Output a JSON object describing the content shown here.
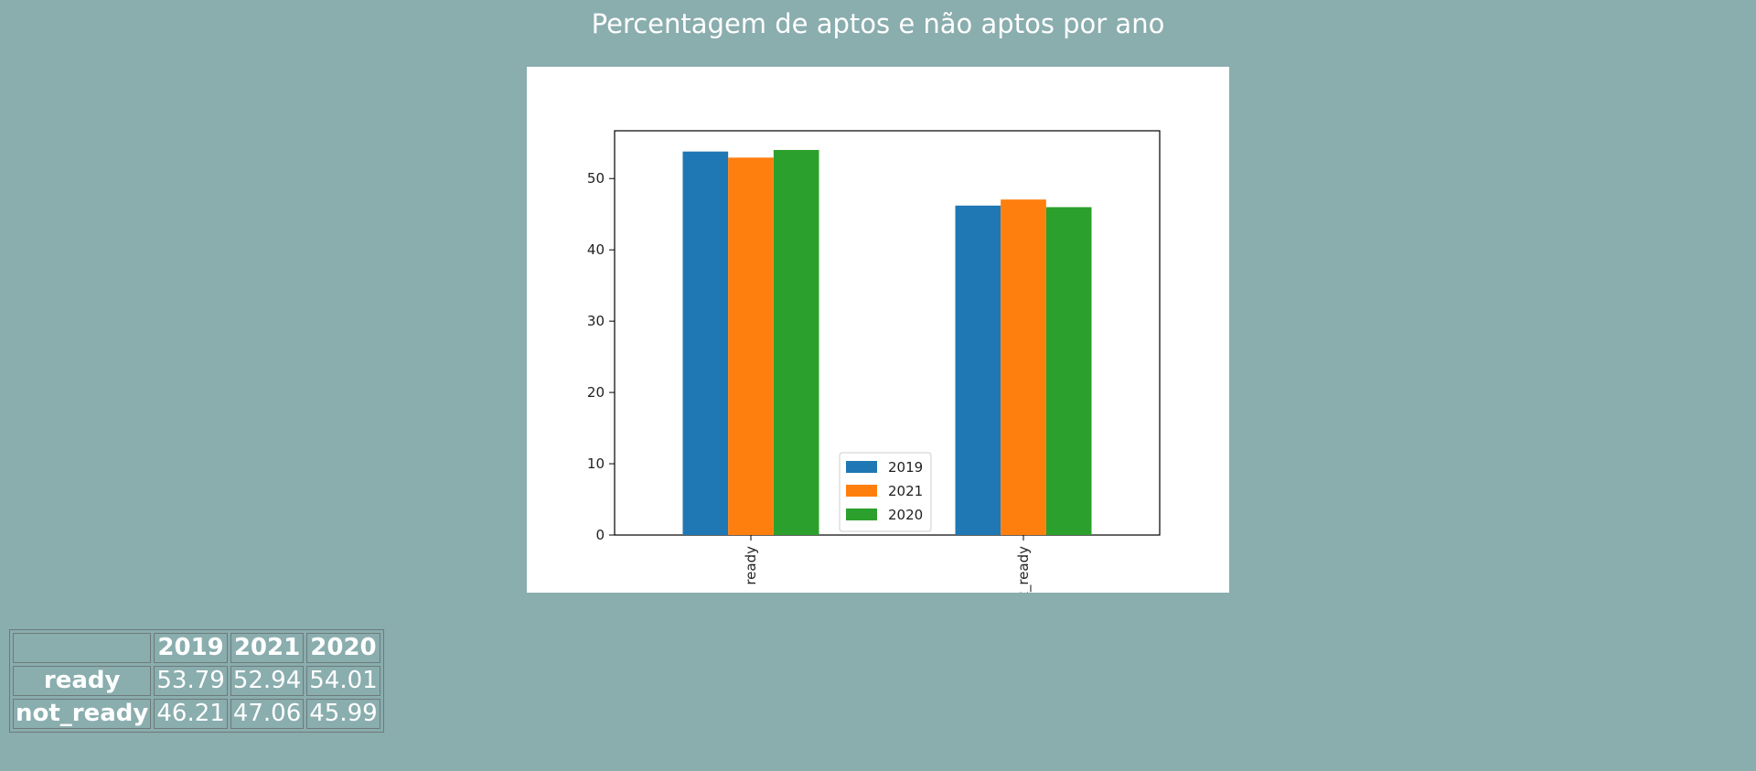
{
  "page_title": "Percentagem de aptos e não aptos por ano",
  "chart_data": {
    "type": "bar",
    "categories": [
      "ready",
      "not_ready"
    ],
    "series": [
      {
        "name": "2019",
        "values": [
          53.79,
          46.21
        ],
        "color": "#1f77b4"
      },
      {
        "name": "2021",
        "values": [
          52.94,
          47.06
        ],
        "color": "#ff7f0e"
      },
      {
        "name": "2020",
        "values": [
          54.01,
          45.99
        ],
        "color": "#2ca02c"
      }
    ],
    "yticks": [
      0,
      10,
      20,
      30,
      40,
      50
    ],
    "ylim": [
      0,
      56.7
    ],
    "legend": "lower-center",
    "grid": false
  },
  "table": {
    "columns": [
      "2019",
      "2021",
      "2020"
    ],
    "rows": [
      {
        "label": "ready",
        "values": [
          "53.79",
          "52.94",
          "54.01"
        ]
      },
      {
        "label": "not_ready",
        "values": [
          "46.21",
          "47.06",
          "45.99"
        ]
      }
    ]
  }
}
